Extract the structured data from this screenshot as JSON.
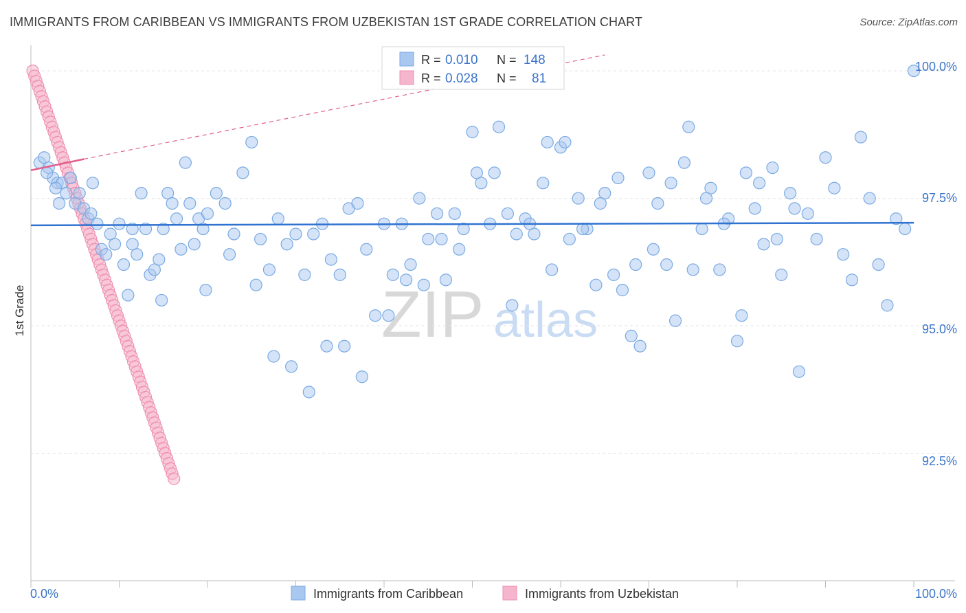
{
  "header": {
    "title": "IMMIGRANTS FROM CARIBBEAN VS IMMIGRANTS FROM UZBEKISTAN 1ST GRADE CORRELATION CHART",
    "source": "Source: ZipAtlas.com"
  },
  "watermark": {
    "zip": "ZIP",
    "atlas": "atlas"
  },
  "colors": {
    "blue": "#7aaae3",
    "blue_fill": "#a9c8f0",
    "blue_line": "#2f72d0",
    "pink": "#ee8fb0",
    "pink_fill": "#f5b5cc",
    "pink_line": "#e05f8d",
    "axis_label": "#3b74c9",
    "grid": "#e3e3e3"
  },
  "legend_box": {
    "rows": [
      {
        "r_label": "R =",
        "r_value": "0.010",
        "n_label": "N =",
        "n_value": "148"
      },
      {
        "r_label": "R =",
        "r_value": "0.028",
        "n_label": "N =",
        "n_value": "81"
      }
    ]
  },
  "bottom_legend": [
    {
      "label": "Immigrants from Caribbean"
    },
    {
      "label": "Immigrants from Uzbekistan"
    }
  ],
  "chart_data": {
    "type": "scatter",
    "title": "IMMIGRANTS FROM CARIBBEAN VS IMMIGRANTS FROM UZBEKISTAN 1ST GRADE CORRELATION CHART",
    "xlabel": "",
    "ylabel": "1st Grade",
    "xlim": [
      0,
      100
    ],
    "ylim": [
      90.0,
      100.5
    ],
    "x_tick_labels": [
      "0.0%",
      "100.0%"
    ],
    "y_ticks": [
      100.0,
      97.5,
      95.0,
      92.5
    ],
    "y_tick_labels": [
      "100.0%",
      "97.5%",
      "95.0%",
      "92.5%"
    ],
    "legend_position": "bottom",
    "series": [
      {
        "name": "Immigrants from Caribbean",
        "r": 0.01,
        "n": 148,
        "trend": {
          "x": [
            0,
            100
          ],
          "y": [
            96.97,
            97.02
          ]
        },
        "points": [
          [
            1.0,
            98.2
          ],
          [
            1.5,
            98.3
          ],
          [
            2.0,
            98.1
          ],
          [
            2.5,
            97.9
          ],
          [
            3.0,
            97.8
          ],
          [
            3.5,
            97.8
          ],
          [
            4.0,
            97.6
          ],
          [
            1.8,
            98.0
          ],
          [
            2.8,
            97.7
          ],
          [
            4.5,
            97.9
          ],
          [
            5.0,
            97.4
          ],
          [
            5.5,
            97.6
          ],
          [
            6.0,
            97.3
          ],
          [
            6.5,
            97.1
          ],
          [
            7.0,
            97.8
          ],
          [
            7.5,
            97.0
          ],
          [
            8.0,
            96.5
          ],
          [
            8.5,
            96.4
          ],
          [
            9.0,
            96.8
          ],
          [
            9.5,
            96.6
          ],
          [
            10.0,
            97.0
          ],
          [
            10.5,
            96.2
          ],
          [
            11.0,
            95.6
          ],
          [
            11.5,
            96.9
          ],
          [
            12.0,
            96.4
          ],
          [
            12.5,
            97.6
          ],
          [
            13.0,
            96.9
          ],
          [
            13.5,
            96.0
          ],
          [
            14.0,
            96.1
          ],
          [
            14.5,
            96.3
          ],
          [
            15.0,
            96.9
          ],
          [
            15.5,
            97.6
          ],
          [
            16.0,
            97.4
          ],
          [
            16.5,
            97.1
          ],
          [
            17.0,
            96.5
          ],
          [
            17.5,
            98.2
          ],
          [
            18.0,
            97.4
          ],
          [
            18.5,
            96.6
          ],
          [
            19.0,
            97.1
          ],
          [
            19.5,
            96.9
          ],
          [
            20.0,
            97.2
          ],
          [
            21.0,
            97.6
          ],
          [
            22.0,
            97.4
          ],
          [
            23.0,
            96.8
          ],
          [
            24.0,
            98.0
          ],
          [
            25.0,
            98.6
          ],
          [
            26.0,
            96.7
          ],
          [
            27.0,
            96.1
          ],
          [
            28.0,
            97.1
          ],
          [
            29.0,
            96.6
          ],
          [
            30.0,
            96.8
          ],
          [
            31.0,
            96.0
          ],
          [
            32.0,
            96.8
          ],
          [
            33.0,
            97.0
          ],
          [
            34.0,
            96.3
          ],
          [
            35.0,
            96.0
          ],
          [
            36.0,
            97.3
          ],
          [
            37.0,
            97.4
          ],
          [
            38.0,
            96.5
          ],
          [
            39.0,
            95.2
          ],
          [
            40.0,
            97.0
          ],
          [
            41.0,
            96.0
          ],
          [
            42.0,
            97.0
          ],
          [
            43.0,
            96.2
          ],
          [
            44.0,
            97.5
          ],
          [
            45.0,
            96.7
          ],
          [
            46.0,
            97.2
          ],
          [
            47.0,
            95.9
          ],
          [
            48.0,
            97.2
          ],
          [
            49.0,
            96.9
          ],
          [
            50.0,
            98.8
          ],
          [
            51.0,
            97.8
          ],
          [
            52.0,
            97.0
          ],
          [
            53.0,
            98.9
          ],
          [
            54.0,
            97.2
          ],
          [
            55.0,
            96.8
          ],
          [
            56.0,
            97.1
          ],
          [
            57.0,
            96.8
          ],
          [
            58.0,
            97.8
          ],
          [
            59.0,
            96.1
          ],
          [
            60.0,
            98.5
          ],
          [
            61.0,
            96.7
          ],
          [
            62.0,
            97.5
          ],
          [
            63.0,
            96.9
          ],
          [
            64.0,
            95.8
          ],
          [
            65.0,
            97.6
          ],
          [
            66.0,
            96.0
          ],
          [
            67.0,
            95.7
          ],
          [
            68.0,
            94.8
          ],
          [
            69.0,
            94.6
          ],
          [
            70.0,
            98.0
          ],
          [
            71.0,
            97.4
          ],
          [
            72.0,
            96.2
          ],
          [
            73.0,
            95.1
          ],
          [
            74.0,
            98.2
          ],
          [
            75.0,
            96.1
          ],
          [
            76.0,
            96.9
          ],
          [
            77.0,
            97.7
          ],
          [
            78.0,
            96.1
          ],
          [
            79.0,
            97.1
          ],
          [
            80.0,
            94.7
          ],
          [
            81.0,
            98.0
          ],
          [
            82.0,
            97.3
          ],
          [
            83.0,
            96.6
          ],
          [
            84.0,
            98.1
          ],
          [
            85.0,
            96.0
          ],
          [
            86.0,
            97.6
          ],
          [
            87.0,
            94.1
          ],
          [
            88.0,
            97.2
          ],
          [
            89.0,
            96.7
          ],
          [
            90.0,
            98.3
          ],
          [
            91.0,
            97.7
          ],
          [
            92.0,
            96.4
          ],
          [
            93.0,
            95.9
          ],
          [
            94.0,
            98.7
          ],
          [
            95.0,
            97.5
          ],
          [
            96.0,
            96.2
          ],
          [
            97.0,
            95.4
          ],
          [
            98.0,
            97.1
          ],
          [
            99.0,
            96.9
          ],
          [
            100.0,
            100.0
          ],
          [
            3.2,
            97.4
          ],
          [
            6.8,
            97.2
          ],
          [
            11.5,
            96.6
          ],
          [
            14.8,
            95.5
          ],
          [
            19.8,
            95.7
          ],
          [
            22.5,
            96.4
          ],
          [
            25.5,
            95.8
          ],
          [
            27.5,
            94.4
          ],
          [
            29.5,
            94.2
          ],
          [
            31.5,
            93.7
          ],
          [
            33.5,
            94.6
          ],
          [
            35.5,
            94.6
          ],
          [
            37.5,
            94.0
          ],
          [
            40.5,
            95.2
          ],
          [
            42.5,
            95.9
          ],
          [
            44.5,
            95.8
          ],
          [
            46.5,
            96.7
          ],
          [
            48.5,
            96.5
          ],
          [
            50.5,
            98.0
          ],
          [
            52.5,
            98.0
          ],
          [
            54.5,
            95.4
          ],
          [
            56.5,
            97.0
          ],
          [
            58.5,
            98.6
          ],
          [
            60.5,
            98.6
          ],
          [
            62.5,
            96.9
          ],
          [
            64.5,
            97.4
          ],
          [
            66.5,
            97.9
          ],
          [
            68.5,
            96.2
          ],
          [
            70.5,
            96.5
          ],
          [
            72.5,
            97.8
          ],
          [
            74.5,
            98.9
          ],
          [
            76.5,
            97.5
          ],
          [
            78.5,
            97.0
          ],
          [
            80.5,
            95.2
          ],
          [
            82.5,
            97.8
          ],
          [
            84.5,
            96.7
          ],
          [
            86.5,
            97.3
          ]
        ]
      },
      {
        "name": "Immigrants from Uzbekistan",
        "r": 0.028,
        "n": 81,
        "trend": {
          "x": [
            0,
            100
          ],
          "y": [
            98.05,
            101.7
          ]
        },
        "points": [
          [
            0.2,
            100.0
          ],
          [
            0.4,
            99.9
          ],
          [
            0.6,
            99.8
          ],
          [
            0.8,
            99.7
          ],
          [
            1.0,
            99.6
          ],
          [
            1.2,
            99.5
          ],
          [
            1.4,
            99.4
          ],
          [
            1.6,
            99.3
          ],
          [
            1.8,
            99.2
          ],
          [
            2.0,
            99.1
          ],
          [
            2.2,
            99.0
          ],
          [
            2.4,
            98.9
          ],
          [
            2.6,
            98.8
          ],
          [
            2.8,
            98.7
          ],
          [
            3.0,
            98.6
          ],
          [
            3.2,
            98.5
          ],
          [
            3.4,
            98.4
          ],
          [
            3.6,
            98.3
          ],
          [
            3.8,
            98.2
          ],
          [
            4.0,
            98.1
          ],
          [
            4.2,
            98.0
          ],
          [
            4.4,
            97.9
          ],
          [
            4.6,
            97.8
          ],
          [
            4.8,
            97.7
          ],
          [
            5.0,
            97.6
          ],
          [
            5.2,
            97.5
          ],
          [
            5.4,
            97.4
          ],
          [
            5.6,
            97.3
          ],
          [
            5.8,
            97.2
          ],
          [
            6.0,
            97.1
          ],
          [
            6.2,
            97.0
          ],
          [
            6.4,
            96.9
          ],
          [
            6.6,
            96.8
          ],
          [
            6.8,
            96.7
          ],
          [
            7.0,
            96.6
          ],
          [
            7.2,
            96.5
          ],
          [
            7.4,
            96.4
          ],
          [
            7.6,
            96.3
          ],
          [
            7.8,
            96.2
          ],
          [
            8.0,
            96.1
          ],
          [
            8.2,
            96.0
          ],
          [
            8.4,
            95.9
          ],
          [
            8.6,
            95.8
          ],
          [
            8.8,
            95.7
          ],
          [
            9.0,
            95.6
          ],
          [
            9.2,
            95.5
          ],
          [
            9.4,
            95.4
          ],
          [
            9.6,
            95.3
          ],
          [
            9.8,
            95.2
          ],
          [
            10.0,
            95.1
          ],
          [
            10.2,
            95.0
          ],
          [
            10.4,
            94.9
          ],
          [
            10.6,
            94.8
          ],
          [
            10.8,
            94.7
          ],
          [
            11.0,
            94.6
          ],
          [
            11.2,
            94.5
          ],
          [
            11.4,
            94.4
          ],
          [
            11.6,
            94.3
          ],
          [
            11.8,
            94.2
          ],
          [
            12.0,
            94.1
          ],
          [
            12.2,
            94.0
          ],
          [
            12.4,
            93.9
          ],
          [
            12.6,
            93.8
          ],
          [
            12.8,
            93.7
          ],
          [
            13.0,
            93.6
          ],
          [
            13.2,
            93.5
          ],
          [
            13.4,
            93.4
          ],
          [
            13.6,
            93.3
          ],
          [
            13.8,
            93.2
          ],
          [
            14.0,
            93.1
          ],
          [
            14.2,
            93.0
          ],
          [
            14.4,
            92.9
          ],
          [
            14.6,
            92.8
          ],
          [
            14.8,
            92.7
          ],
          [
            15.0,
            92.6
          ],
          [
            15.2,
            92.5
          ],
          [
            15.4,
            92.4
          ],
          [
            15.6,
            92.3
          ],
          [
            15.8,
            92.2
          ],
          [
            16.0,
            92.1
          ],
          [
            16.2,
            92.0
          ]
        ]
      }
    ]
  }
}
